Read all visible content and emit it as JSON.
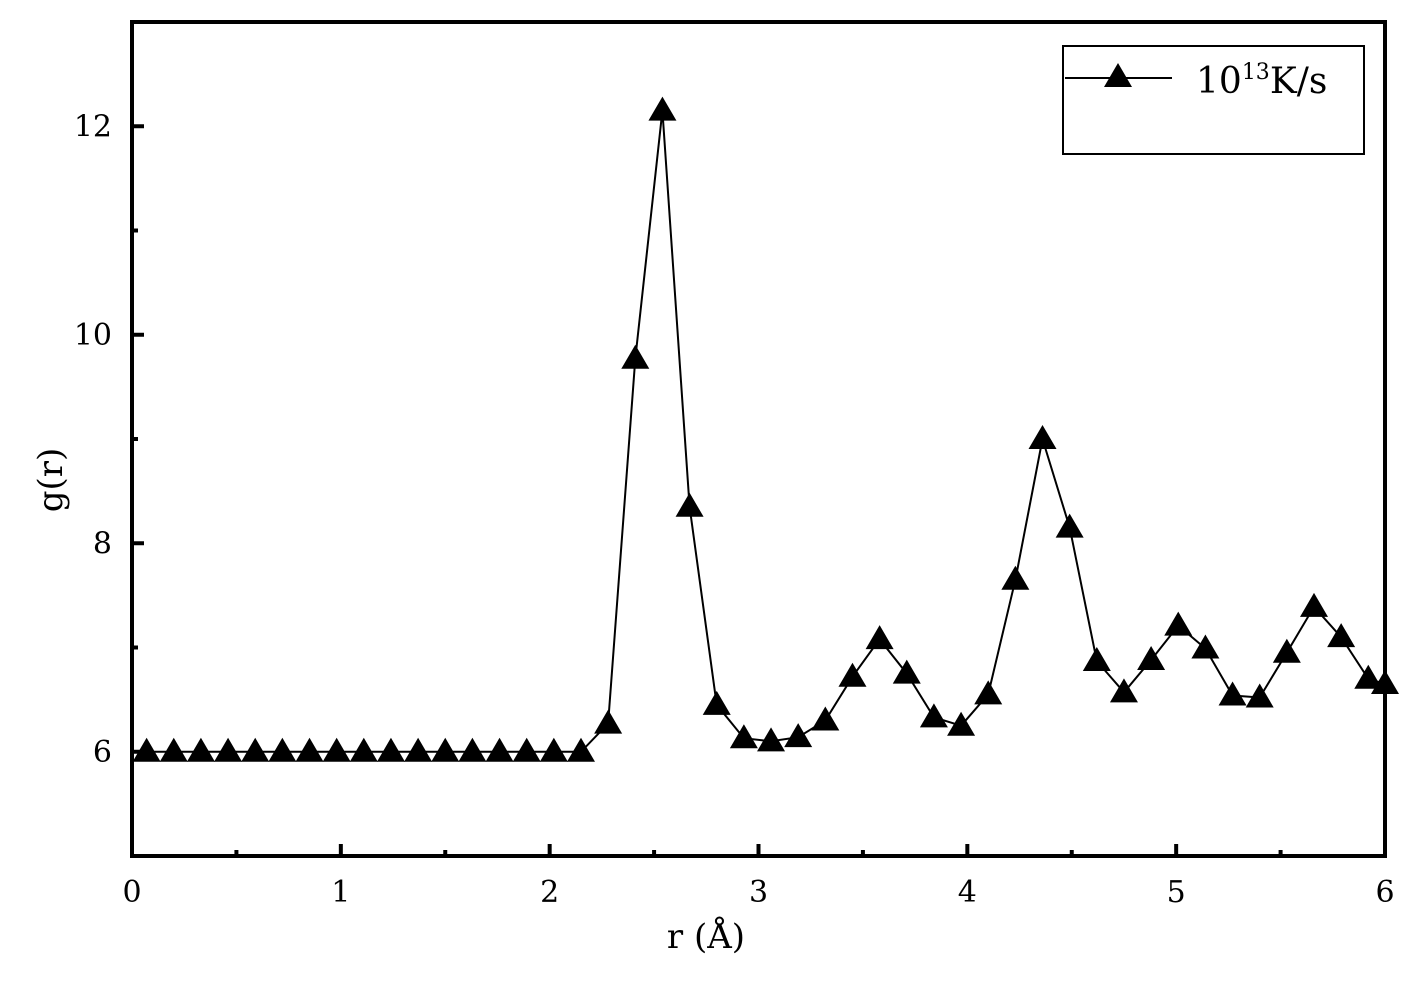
{
  "chart_data": {
    "type": "line",
    "title": "",
    "xlabel": "r (Å)",
    "ylabel": "g(r)",
    "xlim": [
      0,
      6
    ],
    "ylim": [
      5,
      13
    ],
    "x_ticks": [
      "0",
      "1",
      "2",
      "3",
      "4",
      "5",
      "6"
    ],
    "y_ticks": [
      "6",
      "8",
      "10",
      "12"
    ],
    "grid": false,
    "legend_position": "top-right",
    "marker": "triangle",
    "line_color": "#000000",
    "legend": {
      "base": "10",
      "exponent": "13",
      "unit": "K/s"
    },
    "series": [
      {
        "name": "10^13K/s",
        "x": [
          0.07,
          0.2,
          0.33,
          0.46,
          0.59,
          0.72,
          0.85,
          0.98,
          1.11,
          1.24,
          1.37,
          1.5,
          1.63,
          1.76,
          1.89,
          2.02,
          2.15,
          2.28,
          2.41,
          2.54,
          2.67,
          2.8,
          2.93,
          3.06,
          3.19,
          3.32,
          3.45,
          3.58,
          3.71,
          3.84,
          3.97,
          4.1,
          4.23,
          4.36,
          4.49,
          4.62,
          4.75,
          4.88,
          5.01,
          5.14,
          5.27,
          5.4,
          5.53,
          5.66,
          5.79,
          5.92,
          6.0
        ],
        "y": [
          6.0,
          6.0,
          6.0,
          6.0,
          6.0,
          6.0,
          6.0,
          6.0,
          6.0,
          6.0,
          6.0,
          6.0,
          6.0,
          6.0,
          6.0,
          6.0,
          6.0,
          6.27,
          9.77,
          12.15,
          8.35,
          6.45,
          6.13,
          6.1,
          6.14,
          6.3,
          6.72,
          7.08,
          6.75,
          6.33,
          6.25,
          6.55,
          7.65,
          9.0,
          8.15,
          6.87,
          6.57,
          6.88,
          7.21,
          6.99,
          6.54,
          6.52,
          6.95,
          7.39,
          7.1,
          6.7,
          6.65
        ]
      }
    ]
  }
}
